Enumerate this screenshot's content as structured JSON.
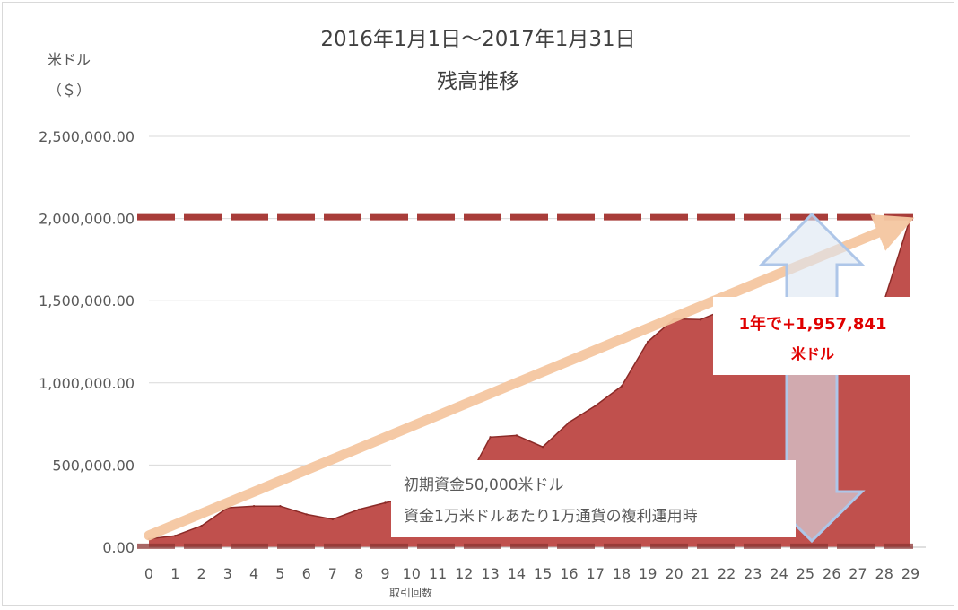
{
  "chart_data": {
    "type": "area",
    "title_line1": "2016年1月1日～2017年1月31日",
    "title_line2": "残高推移",
    "ylabel_line1": "米ドル",
    "ylabel_line2": "（＄）",
    "xlabel": "取引回数",
    "ylim": [
      0,
      2500000
    ],
    "y_ticks": [
      0,
      500000,
      1000000,
      1500000,
      2000000,
      2500000
    ],
    "y_tick_labels": [
      "0.00",
      "500,000.00",
      "1,000,000.00",
      "1,500,000.00",
      "2,000,000.00",
      "2,500,000.00"
    ],
    "grid": true,
    "x": [
      0,
      1,
      2,
      3,
      4,
      5,
      6,
      7,
      8,
      9,
      10,
      11,
      12,
      13,
      14,
      15,
      16,
      17,
      18,
      19,
      20,
      21,
      22,
      23,
      24,
      25,
      26,
      27,
      28,
      29
    ],
    "x_tick_labels": [
      "0",
      "1",
      "2",
      "3",
      "4",
      "5",
      "6",
      "7",
      "8",
      "9",
      "10",
      "11",
      "12",
      "13",
      "14",
      "15",
      "16",
      "17",
      "18",
      "19",
      "20",
      "21",
      "22",
      "23",
      "24",
      "25",
      "26",
      "27",
      "28",
      "29"
    ],
    "values": [
      50000,
      70000,
      130000,
      240000,
      250000,
      250000,
      200000,
      170000,
      230000,
      270000,
      310000,
      340000,
      370000,
      670000,
      680000,
      610000,
      760000,
      860000,
      980000,
      1250000,
      1390000,
      1385000,
      1450000,
      1420000,
      1380000,
      1380000,
      1400000,
      1420000,
      1500000,
      2007841
    ],
    "reference_lines": [
      2007841,
      50000
    ],
    "trend_arrow": "upward compound-growth trend",
    "colors": {
      "area": "#c0504d",
      "area_line": "#8b2a27",
      "dashed_line": "#a83c39",
      "trend": "#f5c7a1",
      "double_arrow_fill": "#dce6f2",
      "double_arrow_stroke": "#aec6e8",
      "grid": "#d9d9d9",
      "axis_text": "#595959",
      "title_text": "#404040",
      "highlight_text": "#e00000"
    },
    "annotations": {
      "gain_line1": "1年で+1,957,841",
      "gain_line2": "米ドル",
      "note_line1": "初期資金50,000米ドル",
      "note_line2": "資金1万米ドルあたり1万通貨の複利運用時"
    }
  }
}
